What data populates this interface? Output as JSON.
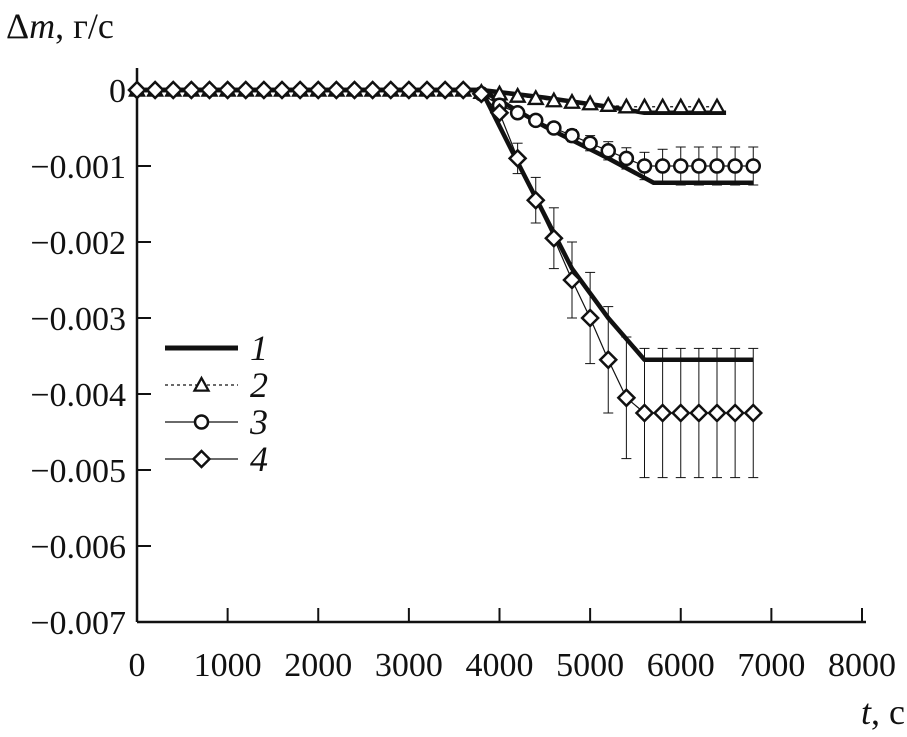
{
  "chart_data": {
    "type": "line",
    "ylabel_symbol": "Δ",
    "ylabel_var": "m",
    "ylabel_unit": ", г/с",
    "xlabel_var": "t",
    "xlabel_unit": ", с",
    "xlim": [
      0,
      8000
    ],
    "ylim": [
      -0.007,
      0
    ],
    "xticks": [
      0,
      1000,
      2000,
      3000,
      4000,
      5000,
      6000,
      7000,
      8000
    ],
    "xtick_labels": [
      "0",
      "1000",
      "2000",
      "3000",
      "4000",
      "5000",
      "6000",
      "7000",
      "8000"
    ],
    "yticks": [
      0,
      -0.001,
      -0.002,
      -0.003,
      -0.004,
      -0.005,
      -0.006,
      -0.007
    ],
    "ytick_labels": [
      "0",
      "−0.001",
      "−0.002",
      "−0.003",
      "−0.004",
      "−0.005",
      "−0.006",
      "−0.007"
    ],
    "legend_position": "left-middle",
    "lines": [
      {
        "x": [
          0,
          3800,
          4500,
          5200,
          5600,
          6500
        ],
        "y": [
          0,
          0,
          -0.0001,
          -0.00022,
          -0.0003,
          -0.0003
        ]
      },
      {
        "x": [
          0,
          3800,
          4500,
          5200,
          5700,
          6800
        ],
        "y": [
          0,
          0,
          -0.00048,
          -0.0009,
          -0.00122,
          -0.00122
        ]
      },
      {
        "x": [
          0,
          3800,
          4200,
          4800,
          5200,
          5600,
          6800
        ],
        "y": [
          0,
          0,
          -0.00095,
          -0.00235,
          -0.003,
          -0.00355,
          -0.00355
        ]
      }
    ],
    "series": [
      {
        "name": "2",
        "marker": "triangle",
        "x": [
          0,
          200,
          400,
          600,
          800,
          1000,
          1200,
          1400,
          1600,
          1800,
          2000,
          2200,
          2400,
          2600,
          2800,
          3000,
          3200,
          3400,
          3600,
          3800,
          4000,
          4200,
          4400,
          4600,
          4800,
          5000,
          5200,
          5400,
          5600,
          5800,
          6000,
          6200,
          6400
        ],
        "y": [
          0,
          0,
          0,
          0,
          0,
          0,
          0,
          0,
          0,
          0,
          0,
          0,
          0,
          0,
          0,
          0,
          0,
          0,
          0,
          -3e-05,
          -5e-05,
          -8e-05,
          -0.00011,
          -0.00014,
          -0.00016,
          -0.00018,
          -0.0002,
          -0.00022,
          -0.00022,
          -0.00022,
          -0.00022,
          -0.00022,
          -0.00022
        ],
        "err": [
          0,
          0,
          0,
          0,
          0,
          0,
          0,
          0,
          0,
          0,
          0,
          0,
          0,
          0,
          0,
          0,
          0,
          0,
          0,
          0,
          0,
          0,
          0,
          0,
          0,
          0,
          0,
          0,
          0,
          0,
          0,
          0,
          0
        ]
      },
      {
        "name": "3",
        "marker": "circle",
        "x": [
          3800,
          4000,
          4200,
          4400,
          4600,
          4800,
          5000,
          5200,
          5400,
          5600,
          5800,
          6000,
          6200,
          6400,
          6600,
          6800
        ],
        "y": [
          -5e-05,
          -0.0002,
          -0.0003,
          -0.0004,
          -0.0005,
          -0.0006,
          -0.0007,
          -0.0008,
          -0.0009,
          -0.001,
          -0.001,
          -0.001,
          -0.001,
          -0.001,
          -0.001,
          -0.001
        ],
        "err": [
          0,
          0,
          5e-05,
          6e-05,
          7e-05,
          8e-05,
          0.0001,
          0.00012,
          0.00014,
          0.00018,
          0.00022,
          0.00025,
          0.00025,
          0.00025,
          0.00025,
          0.00025
        ]
      },
      {
        "name": "4",
        "marker": "diamond",
        "x": [
          0,
          200,
          400,
          600,
          800,
          1000,
          1200,
          1400,
          1600,
          1800,
          2000,
          2200,
          2400,
          2600,
          2800,
          3000,
          3200,
          3400,
          3600,
          3800,
          4000,
          4200,
          4400,
          4600,
          4800,
          5000,
          5200,
          5400,
          5600,
          5800,
          6000,
          6200,
          6400,
          6600,
          6800
        ],
        "y": [
          0,
          0,
          0,
          0,
          0,
          0,
          0,
          0,
          0,
          0,
          0,
          0,
          0,
          0,
          0,
          0,
          0,
          0,
          0,
          -5e-05,
          -0.0003,
          -0.0009,
          -0.00145,
          -0.00195,
          -0.0025,
          -0.003,
          -0.00355,
          -0.00405,
          -0.00425,
          -0.00425,
          -0.00425,
          -0.00425,
          -0.00425,
          -0.00425,
          -0.00425
        ],
        "err": [
          0,
          0,
          0,
          0,
          0,
          0,
          0,
          0,
          0,
          0,
          0,
          0,
          0,
          0,
          0,
          0,
          0,
          0,
          0,
          0,
          0,
          0.0002,
          0.0003,
          0.0004,
          0.0005,
          0.0006,
          0.0007,
          0.0008,
          0.00085,
          0.00085,
          0.00085,
          0.00085,
          0.00085,
          0.00085,
          0.00085
        ]
      }
    ],
    "legend": [
      {
        "label": "1",
        "style": "thick-line"
      },
      {
        "label": "2",
        "style": "dotted-triangle"
      },
      {
        "label": "3",
        "style": "line-circle"
      },
      {
        "label": "4",
        "style": "line-diamond"
      }
    ]
  }
}
